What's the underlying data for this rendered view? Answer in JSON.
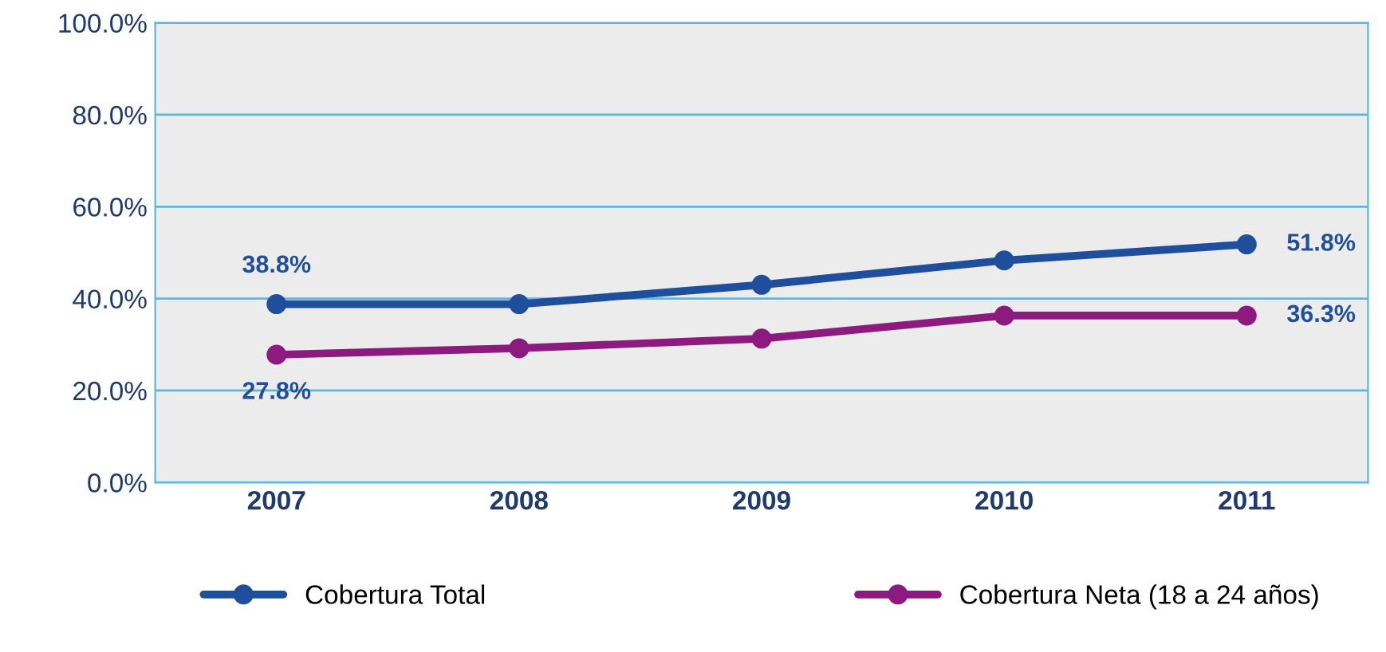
{
  "chart_data": {
    "type": "line",
    "categories": [
      "2007",
      "2008",
      "2009",
      "2010",
      "2011"
    ],
    "series": [
      {
        "name": "Cobertura Total",
        "color": "#1f4e9c",
        "values": [
          38.8,
          38.8,
          43.0,
          48.3,
          51.8
        ],
        "value_labels": [
          "38.8%",
          null,
          null,
          null,
          "51.8%"
        ]
      },
      {
        "name": "Cobertura Neta (18 a 24 años)",
        "color": "#8c1a7f",
        "values": [
          27.8,
          29.2,
          31.3,
          36.3,
          36.3
        ],
        "value_labels": [
          "27.8%",
          null,
          null,
          null,
          "36.3%"
        ]
      }
    ],
    "ylim": [
      0,
      100
    ],
    "yticks": [
      {
        "value": 0,
        "label": "0.0%"
      },
      {
        "value": 20,
        "label": "20.0%"
      },
      {
        "value": 40,
        "label": "40.0%"
      },
      {
        "value": 60,
        "label": "60.0%"
      },
      {
        "value": 80,
        "label": "80.0%"
      },
      {
        "value": 100,
        "label": "100.0%"
      }
    ],
    "grid": "y",
    "legend": "bottom",
    "marker": "circle",
    "line_style": "solid"
  }
}
